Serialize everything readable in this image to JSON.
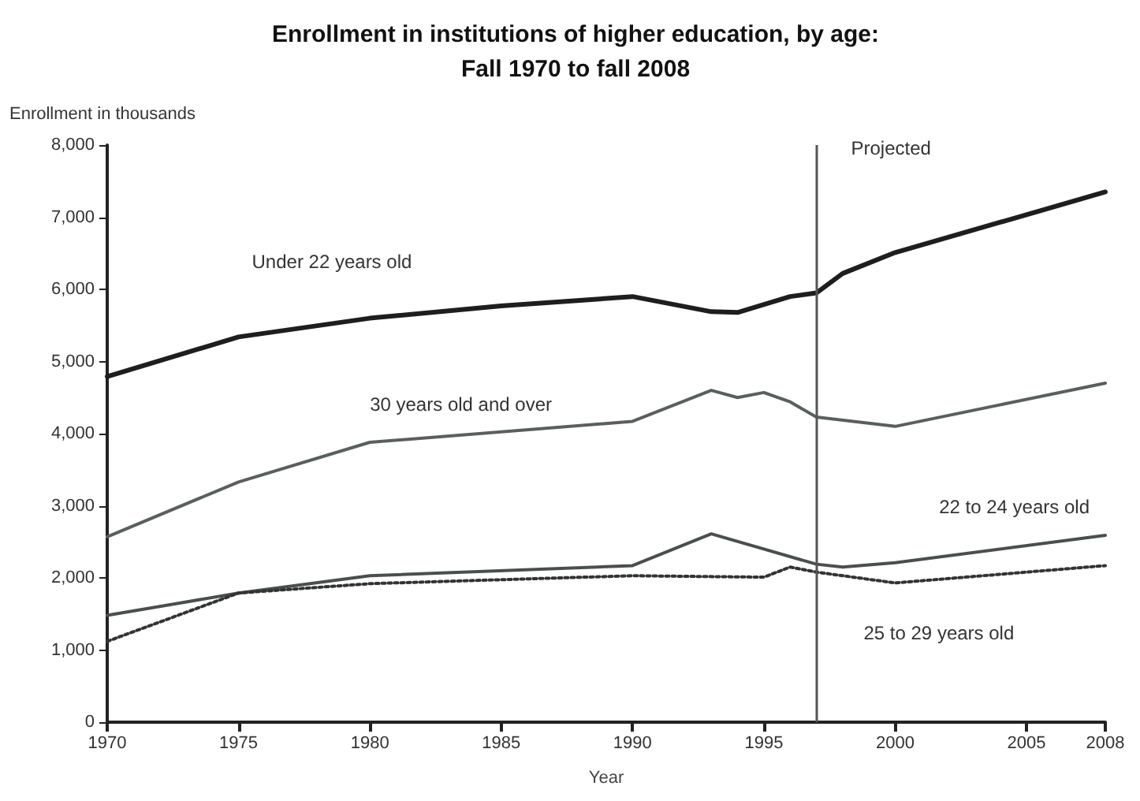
{
  "chart_data": {
    "type": "line",
    "title": "Enrollment in institutions of higher education, by age:\nFall 1970 to fall 2008",
    "xlabel": "Year",
    "ylabel": "Enrollment in thousands",
    "xlim": [
      1970,
      2008
    ],
    "xticks": [
      1970,
      1975,
      1980,
      1985,
      1990,
      1995,
      2000,
      2005,
      2008
    ],
    "ylim": [
      0,
      8000
    ],
    "yticks": [
      0,
      {
        "value": 1000,
        "label": "1,000"
      },
      {
        "value": 2000,
        "label": "2,000"
      },
      {
        "value": 3000,
        "label": "3,000"
      },
      {
        "value": 4000,
        "label": "4,000"
      },
      {
        "value": 5000,
        "label": "5,000"
      },
      {
        "value": 6000,
        "label": "6,000"
      },
      {
        "value": 7000,
        "label": "7,000"
      },
      {
        "value": 8000,
        "label": "8,000"
      }
    ],
    "grid": false,
    "legend": false,
    "marker": "none",
    "ref_lines": [
      {
        "axis": "x",
        "value": 1997,
        "label": "Projected",
        "color": "#555555"
      }
    ],
    "series": [
      {
        "name": "Under 22 years old",
        "color": "#1e1e1e",
        "line_style": "solid",
        "x": [
          1970,
          1975,
          1980,
          1985,
          1990,
          1993,
          1994,
          1996,
          1997,
          1998,
          2000,
          2008
        ],
        "values": [
          4790,
          5340,
          5600,
          5770,
          5900,
          5690,
          5680,
          5900,
          5950,
          6220,
          6510,
          7350
        ]
      },
      {
        "name": "30 years old and over",
        "color": "#5a5f5e",
        "line_style": "solid",
        "x": [
          1970,
          1975,
          1980,
          1990,
          1993,
          1994,
          1995,
          1996,
          1997,
          2000,
          2008
        ],
        "values": [
          2570,
          3330,
          3880,
          4170,
          4600,
          4500,
          4570,
          4440,
          4230,
          4100,
          4700
        ]
      },
      {
        "name": "22 to 24 years old",
        "color": "#4a4f4e",
        "line_style": "solid",
        "x": [
          1970,
          1975,
          1980,
          1990,
          1993,
          1997,
          1998,
          2000,
          2008
        ],
        "values": [
          1480,
          1790,
          2030,
          2170,
          2610,
          2190,
          2150,
          2210,
          2590
        ]
      },
      {
        "name": "25 to 29 years old",
        "color": "#333333",
        "line_style": "dotted",
        "x": [
          1970,
          1975,
          1980,
          1990,
          1995,
          1996,
          1997,
          2000,
          2008
        ],
        "values": [
          1120,
          1790,
          1920,
          2030,
          2010,
          2150,
          2080,
          1930,
          2170
        ]
      }
    ]
  }
}
